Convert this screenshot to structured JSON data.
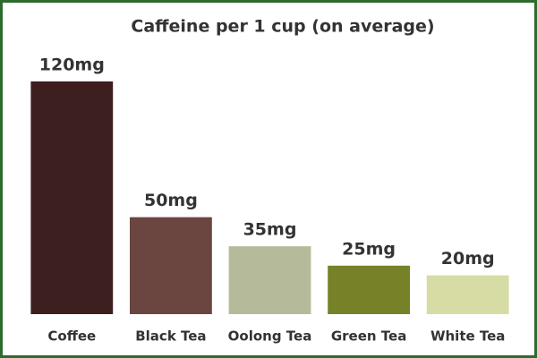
{
  "chart_data": {
    "type": "bar",
    "title": "Caffeine per 1 cup (on average)",
    "categories": [
      "Coffee",
      "Black Tea",
      "Oolong Tea",
      "Green Tea",
      "White Tea"
    ],
    "values": [
      120,
      50,
      35,
      25,
      20
    ],
    "value_labels": [
      "120mg",
      "50mg",
      "35mg",
      "25mg",
      "20mg"
    ],
    "colors": [
      "#3d1f1f",
      "#6b4540",
      "#b5ba9a",
      "#778228",
      "#d6dca3"
    ]
  }
}
